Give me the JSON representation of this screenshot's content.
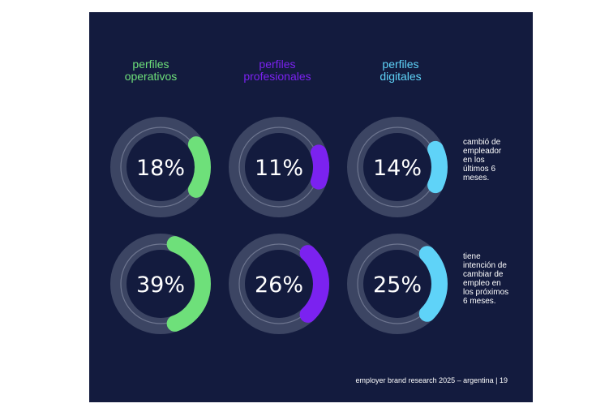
{
  "colors": {
    "background": "#131b3e",
    "track": "#3c4563",
    "track_ring": "#6e7690",
    "operativos": "#6ee07a",
    "profesionales": "#7b22f0",
    "digitales": "#5fd3f8",
    "text": "#ffffff"
  },
  "chart_data": {
    "type": "donut",
    "categories": [
      "perfiles operativos",
      "perfiles profesionales",
      "perfiles digitales"
    ],
    "columns": [
      {
        "title_lines": [
          "perfiles",
          "operativos"
        ],
        "color_key": "operativos"
      },
      {
        "title_lines": [
          "perfiles",
          "profesionales"
        ],
        "color_key": "profesionales"
      },
      {
        "title_lines": [
          "perfiles",
          "digitales"
        ],
        "color_key": "digitales"
      }
    ],
    "series": [
      {
        "label_lines": [
          "cambió de",
          "empleador",
          "en los",
          "últimos 6",
          "meses."
        ],
        "values": [
          18,
          11,
          14
        ],
        "value_labels": [
          "18%",
          "11%",
          "14%"
        ]
      },
      {
        "label_lines": [
          "tiene",
          "intención de",
          "cambiar de",
          "empleo en",
          "los próximos",
          "6 meses."
        ],
        "values": [
          39,
          26,
          25
        ],
        "value_labels": [
          "39%",
          "26%",
          "25%"
        ]
      }
    ],
    "unit": "%"
  },
  "footer": "employer brand research 2025 – argentina | 19"
}
